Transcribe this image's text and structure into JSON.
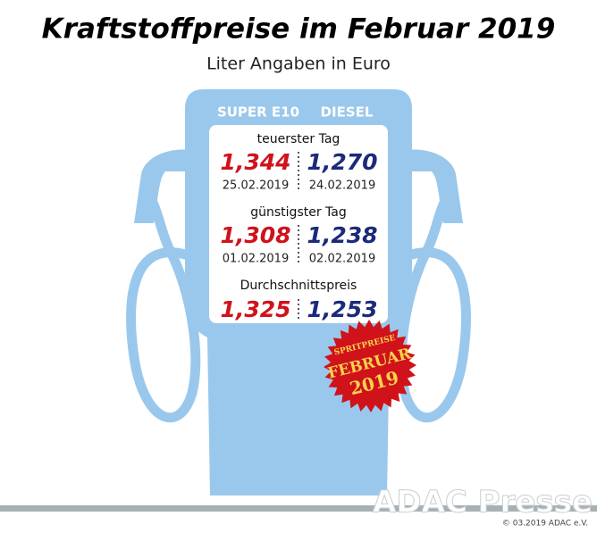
{
  "header": {
    "title": "Kraftstoffpreise im Februar 2019",
    "subtitle": "Liter Angaben in Euro"
  },
  "columns": [
    "SUPER E10",
    "DIESEL"
  ],
  "sections": [
    {
      "label": "teuerster Tag",
      "super_e10": {
        "price": "1,344",
        "date": "25.02.2019"
      },
      "diesel": {
        "price": "1,270",
        "date": "24.02.2019"
      }
    },
    {
      "label": "günstigster Tag",
      "super_e10": {
        "price": "1,308",
        "date": "01.02.2019"
      },
      "diesel": {
        "price": "1,238",
        "date": "02.02.2019"
      }
    },
    {
      "label": "Durchschnittspreis",
      "super_e10": {
        "price": "1,325"
      },
      "diesel": {
        "price": "1,253"
      }
    }
  ],
  "badge": {
    "line1": "SPRITPREISE",
    "line2": "FEBRUAR",
    "line3": "2019"
  },
  "footer": {
    "watermark": "ADAC Presse",
    "copyright": "© 03.2019 ADAC e.V."
  }
}
